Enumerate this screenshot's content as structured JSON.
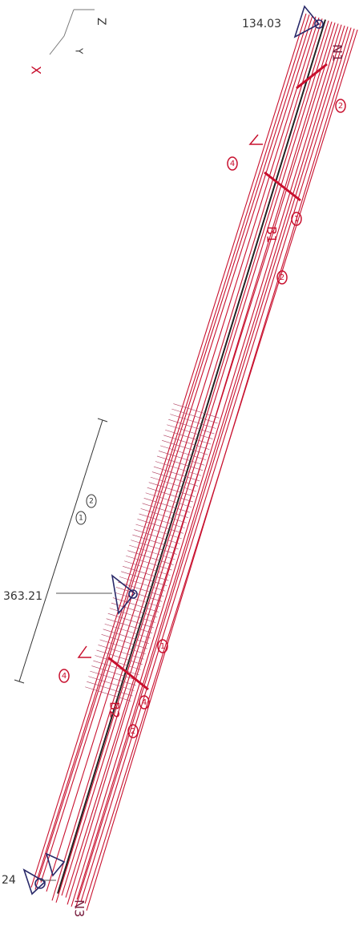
{
  "axes": {
    "z": "Z",
    "y": "Y",
    "x": "X"
  },
  "supports": [
    "134.03",
    "363.21",
    "24"
  ],
  "node_labels": [
    "N1",
    "N3"
  ],
  "beam_labels": [
    "B1",
    "B2"
  ],
  "markers": [
    "4",
    "2",
    "4",
    "1",
    "2",
    "1",
    "2",
    "4",
    "2",
    "1"
  ]
}
